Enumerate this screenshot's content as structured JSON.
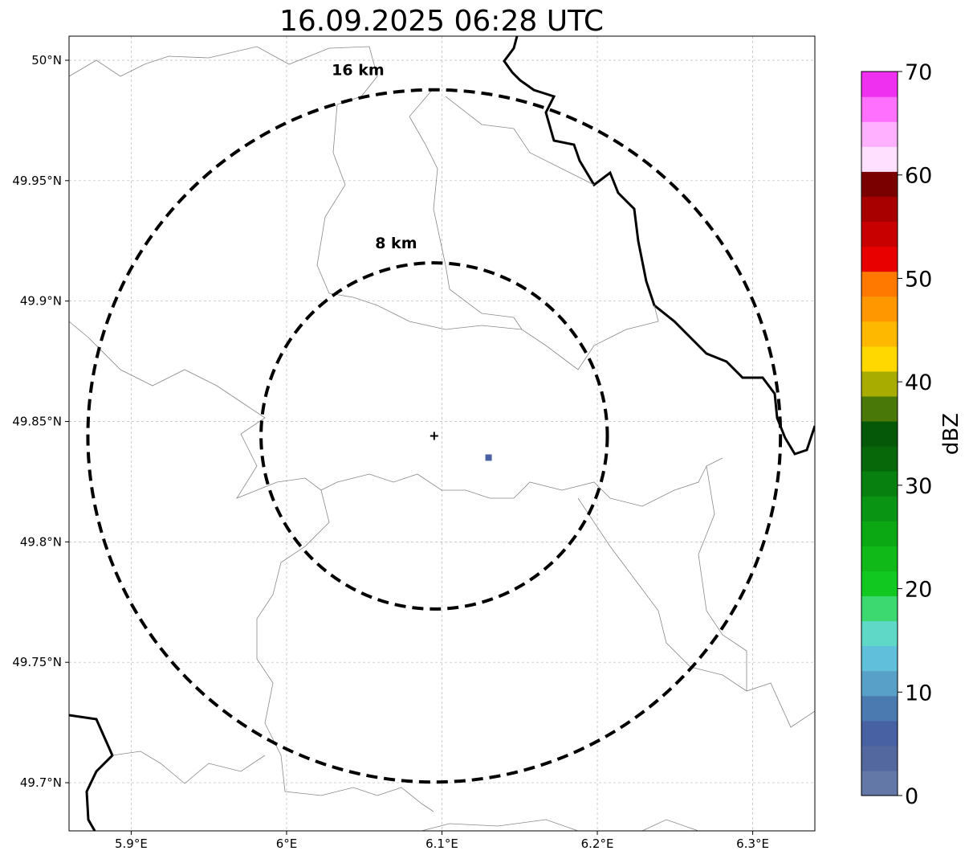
{
  "title": "16.09.2025 06:28 UTC",
  "map": {
    "lon_range": [
      5.86,
      6.34
    ],
    "lat_range": [
      49.68,
      50.01
    ],
    "x_ticks": [
      {
        "value": 5.9,
        "label": "5.9°E"
      },
      {
        "value": 6.0,
        "label": "6°E"
      },
      {
        "value": 6.1,
        "label": "6.1°E"
      },
      {
        "value": 6.2,
        "label": "6.2°E"
      },
      {
        "value": 6.3,
        "label": "6.3°E"
      }
    ],
    "y_ticks": [
      {
        "value": 50.0,
        "label": "50°N"
      },
      {
        "value": 49.95,
        "label": "49.95°N"
      },
      {
        "value": 49.9,
        "label": "49.9°N"
      },
      {
        "value": 49.85,
        "label": "49.85°N"
      },
      {
        "value": 49.8,
        "label": "49.8°N"
      },
      {
        "value": 49.75,
        "label": "49.75°N"
      },
      {
        "value": 49.7,
        "label": "49.7°N"
      }
    ],
    "gridlines": true,
    "radar_site": {
      "lon": 6.095,
      "lat": 49.844
    },
    "range_rings": [
      {
        "radius_km": 8,
        "label": "8 km"
      },
      {
        "radius_km": 16,
        "label": "16 km"
      }
    ]
  },
  "colorbar": {
    "label": "dBZ",
    "min": 0,
    "max": 70,
    "step": 2.5,
    "tick_labels": [
      "0",
      "10",
      "20",
      "30",
      "40",
      "50",
      "60",
      "70"
    ],
    "colors": [
      "#6478a8",
      "#5468a0",
      "#4761a2",
      "#4a7ab0",
      "#58a0c8",
      "#60c0dc",
      "#60d8c8",
      "#3cd870",
      "#10c820",
      "#10b818",
      "#0ca814",
      "#0a9414",
      "#088010",
      "#066808",
      "#045808",
      "#4a7808",
      "#a8ac00",
      "#ffd800",
      "#ffb800",
      "#ff9800",
      "#ff7800",
      "#e80000",
      "#c80000",
      "#a80000",
      "#7a0000",
      "#ffe0ff",
      "#ffb0ff",
      "#ff70ff",
      "#f030f0"
    ]
  },
  "echoes": [
    {
      "lon": 6.13,
      "lat": 49.835,
      "dbz": 5
    }
  ]
}
